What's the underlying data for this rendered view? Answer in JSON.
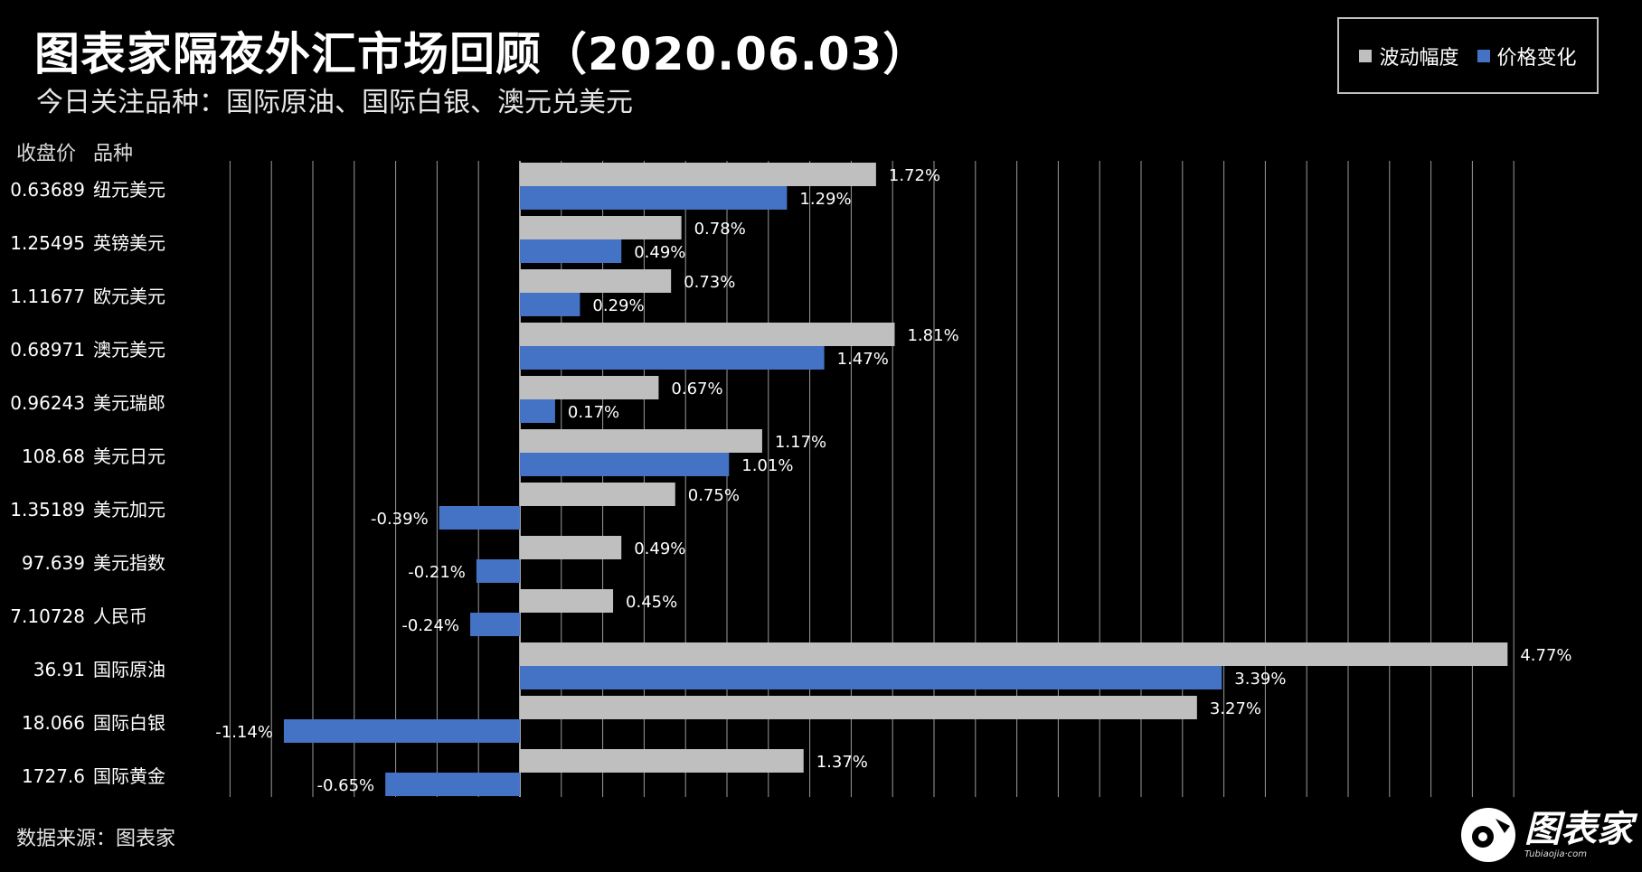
{
  "title": "图表家隔夜外汇市场回顾（2020.06.03）",
  "subtitle": "今日关注品种：国际原油、国际白银、澳元兑美元",
  "headers": {
    "close": "收盘价",
    "variety": "品种"
  },
  "source": "数据来源：图表家",
  "logo": {
    "text": "图表家",
    "sub": "Tubiaojia·com"
  },
  "colors": {
    "range": "#bfbfbf",
    "change": "#4472c4",
    "background": "#000000",
    "grid": "#9a9a9a"
  },
  "chart_data": {
    "type": "bar",
    "orientation": "horizontal",
    "categories": [
      "纽元美元",
      "英镑美元",
      "欧元美元",
      "澳元美元",
      "美元瑞郎",
      "美元日元",
      "美元加元",
      "美元指数",
      "人民币",
      "国际原油",
      "国际白银",
      "国际黄金"
    ],
    "close_prices": [
      "0.63689",
      "1.25495",
      "1.11677",
      "0.68971",
      "0.96243",
      "108.68",
      "1.35189",
      "97.639",
      "7.10728",
      "36.91",
      "18.066",
      "1727.6"
    ],
    "series": [
      {
        "name": "波动幅度",
        "values": [
          1.72,
          0.78,
          0.73,
          1.81,
          0.67,
          1.17,
          0.75,
          0.49,
          0.45,
          4.77,
          3.27,
          1.37
        ],
        "labels": [
          "1.72%",
          "0.78%",
          "0.73%",
          "1.81%",
          "0.67%",
          "1.17%",
          "0.75%",
          "0.49%",
          "0.45%",
          "4.77%",
          "3.27%",
          "1.37%"
        ]
      },
      {
        "name": "价格变化",
        "values": [
          1.29,
          0.49,
          0.29,
          1.47,
          0.17,
          1.01,
          -0.39,
          -0.21,
          -0.24,
          3.39,
          -1.14,
          -0.65
        ],
        "labels": [
          "1.29%",
          "0.49%",
          "0.29%",
          "1.47%",
          "0.17%",
          "1.01%",
          "-0.39%",
          "-0.21%",
          "-0.24%",
          "3.39%",
          "-1.14%",
          "-0.65%"
        ]
      }
    ],
    "xlim": [
      -1.6,
      5.2
    ],
    "grid": true,
    "legend": "top-right"
  }
}
